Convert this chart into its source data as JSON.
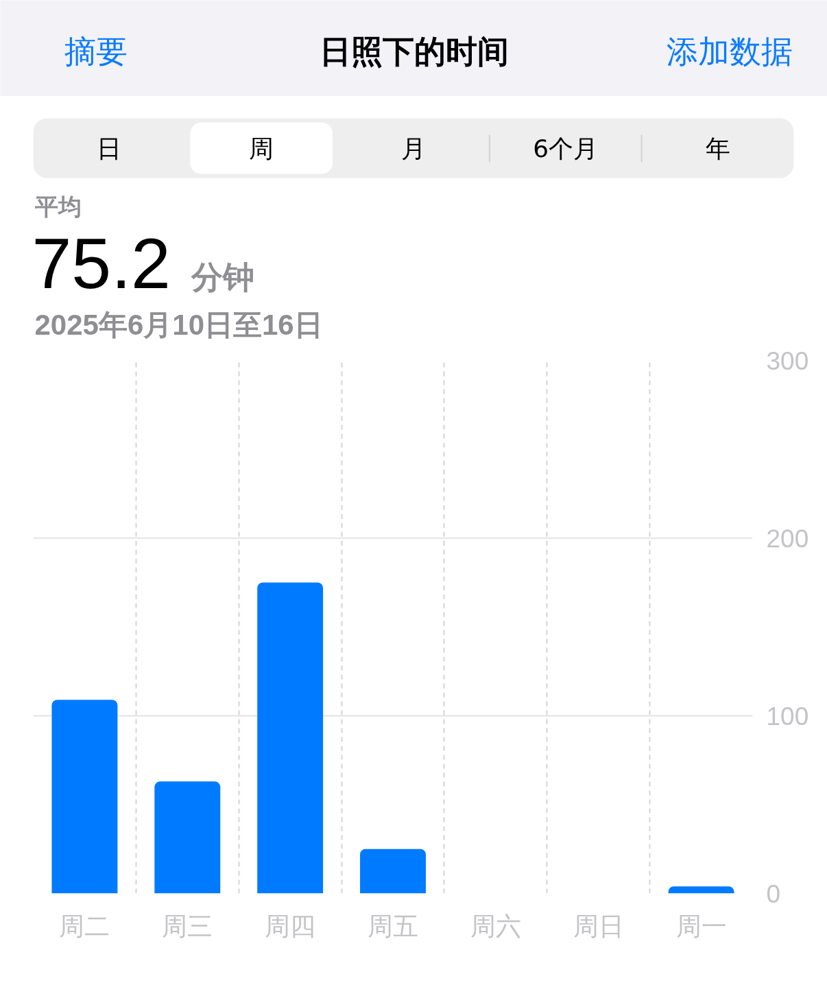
{
  "chart_data": {
    "type": "bar",
    "title": "日照下的时间",
    "annotations": [
      "摘要",
      "添加数据",
      "日",
      "周",
      "月",
      "6个月",
      "年",
      "平均",
      "75.2",
      "分钟",
      "2025年6月10日至16日"
    ],
    "categories": [
      "周二",
      "周三",
      "周四",
      "周五",
      "周六",
      "周日",
      "周一"
    ],
    "values": [
      109,
      63,
      175,
      25,
      null,
      null,
      4
    ],
    "color": "#007aff",
    "ylim": [
      0,
      300
    ],
    "yticks": [
      0,
      100,
      200,
      300
    ],
    "grid": true
  }
}
